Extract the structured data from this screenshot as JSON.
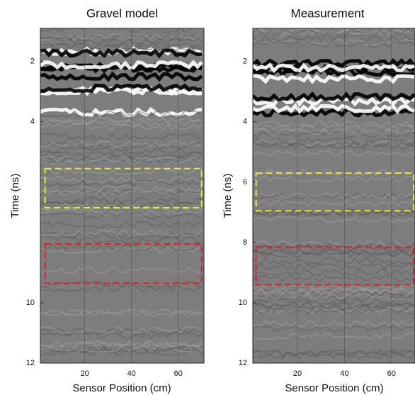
{
  "chart_data": [
    {
      "type": "image",
      "title": "Gravel model",
      "x_label": "Sensor Position (cm)",
      "y_label": "Time (ns)",
      "xlim": [
        1,
        71
      ],
      "ylim": [
        12,
        0.9
      ],
      "xticks": [
        20,
        40,
        60
      ],
      "yticks": [
        2,
        4,
        10,
        12
      ],
      "regions": [
        {
          "color": "#e8e83a",
          "x": [
            3,
            70
          ],
          "y": [
            5.55,
            6.85
          ]
        },
        {
          "color": "#e02020",
          "x": [
            3,
            70
          ],
          "y": [
            8.05,
            9.35
          ]
        }
      ]
    },
    {
      "type": "image",
      "title": "Measurement",
      "x_label": "Sensor Position (cm)",
      "y_label": "Time (ns)",
      "xlim": [
        1,
        70
      ],
      "ylim": [
        12,
        0.9
      ],
      "xticks": [
        20,
        40,
        60
      ],
      "yticks": [
        2,
        4,
        6,
        8,
        10,
        12
      ],
      "regions": [
        {
          "color": "#e8e83a",
          "x": [
            2.4,
            69.4
          ],
          "y": [
            5.7,
            6.95
          ]
        },
        {
          "color": "#e02020",
          "x": [
            2.4,
            69.4
          ],
          "y": [
            8.15,
            9.4
          ]
        }
      ]
    }
  ]
}
